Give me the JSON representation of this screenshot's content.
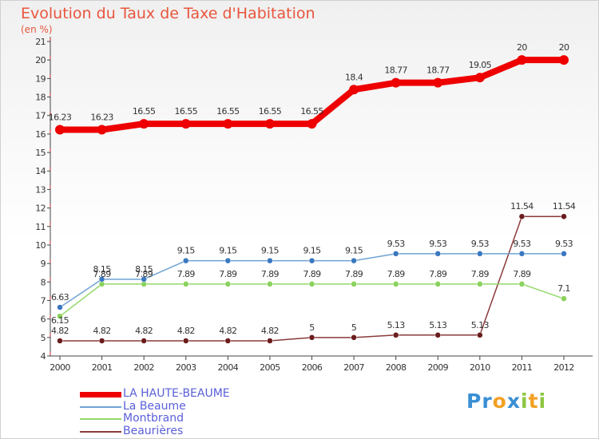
{
  "title": "Evolution du Taux de Taxe d'Habitation",
  "subtitle": "(en %)",
  "logo": {
    "letters": [
      {
        "ch": "P",
        "color": "#3a8fd4"
      },
      {
        "ch": "r",
        "color": "#3a8fd4"
      },
      {
        "ch": "o",
        "color": "#f2a024"
      },
      {
        "ch": "x",
        "color": "#3a8fd4"
      },
      {
        "ch": "i",
        "color": "#8cc63f"
      },
      {
        "ch": "t",
        "color": "#f2a024"
      },
      {
        "ch": "i",
        "color": "#8cc63f"
      }
    ]
  },
  "chart_data": {
    "type": "line",
    "x": [
      "2000",
      "2001",
      "2002",
      "2003",
      "2004",
      "2005",
      "2006",
      "2007",
      "2008",
      "2009",
      "2010",
      "2011",
      "2012"
    ],
    "ylim": [
      4,
      21
    ],
    "yticks": [
      4,
      5,
      6,
      7,
      8,
      9,
      10,
      11,
      12,
      13,
      14,
      15,
      16,
      17,
      18,
      19,
      20,
      21
    ],
    "grid": false,
    "legend_position": "bottom-left",
    "series": [
      {
        "name": "LA HAUTE-BEAUME",
        "color": "#ee0000",
        "values": [
          16.23,
          16.23,
          16.55,
          16.55,
          16.55,
          16.55,
          16.55,
          18.4,
          18.77,
          18.77,
          19.05,
          20,
          20
        ],
        "labels": [
          "16.23",
          "16.23",
          "16.55",
          "16.55",
          "16.55",
          "16.55",
          "16.55",
          "18.4",
          "18.77",
          "18.77",
          "19.05",
          "20",
          "20"
        ]
      },
      {
        "name": "La Beaume",
        "color": "#6fa3d3",
        "marker": "#3a78c0",
        "values": [
          6.63,
          8.15,
          8.15,
          9.15,
          9.15,
          9.15,
          9.15,
          9.15,
          9.53,
          9.53,
          9.53,
          9.53,
          9.53
        ],
        "labels": [
          "6.63",
          "8.15",
          "8.15",
          "9.15",
          "9.15",
          "9.15",
          "9.15",
          "9.15",
          "9.53",
          "9.53",
          "9.53",
          "9.53",
          "9.53"
        ]
      },
      {
        "name": "Montbrand",
        "color": "#94d86a",
        "marker": "#8ad25c",
        "values": [
          6.15,
          7.89,
          7.89,
          7.89,
          7.89,
          7.89,
          7.89,
          7.89,
          7.89,
          7.89,
          7.89,
          7.89,
          7.1
        ],
        "labels": [
          "6.15",
          "7.89",
          "7.89",
          "7.89",
          "7.89",
          "7.89",
          "7.89",
          "7.89",
          "7.89",
          "7.89",
          "7.89",
          "7.89",
          "7.1"
        ]
      },
      {
        "name": "Beaurières",
        "color": "#8b3a3a",
        "marker": "#6b1c1c",
        "values": [
          4.82,
          4.82,
          4.82,
          4.82,
          4.82,
          4.82,
          5,
          5,
          5.13,
          5.13,
          5.13,
          11.54,
          11.54
        ],
        "labels": [
          "4.82",
          "4.82",
          "4.82",
          "4.82",
          "4.82",
          "4.82",
          "5",
          "5",
          "5.13",
          "5.13",
          "5.13",
          "11.54",
          "11.54"
        ]
      }
    ]
  }
}
